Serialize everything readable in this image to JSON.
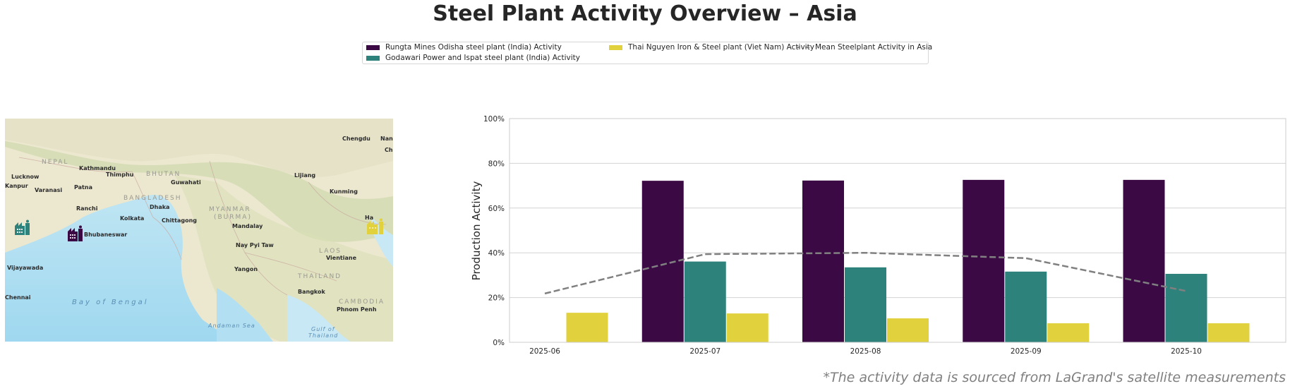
{
  "title": "Steel Plant Activity Overview – Asia",
  "footer": "*The activity data is sourced from LaGrand's satellite measurements",
  "legend": {
    "items": [
      {
        "label": "Rungta Mines Odisha steel plant (India) Activity",
        "color": "#3b0a45",
        "kind": "bar"
      },
      {
        "label": "Godawari Power and Ispat steel plant (India) Activity",
        "color": "#2e827c",
        "kind": "bar"
      },
      {
        "label": "Thai Nguyen Iron & Steel plant (Viet Nam) Activity",
        "color": "#e1d13c",
        "kind": "bar"
      },
      {
        "label": "Mean Steelplant Activity in Asia",
        "color": "#808080",
        "kind": "dashed-line"
      }
    ]
  },
  "map": {
    "labels": {
      "cities": [
        "Chengdu",
        "Nan",
        "Ch",
        "Kathmandu",
        "Thimphu",
        "Lucknow",
        "Kanpur",
        "Varanasi",
        "Patna",
        "Guwahati",
        "Lijiang",
        "Kunming",
        "Ranchi",
        "Dhaka",
        "Kolkata",
        "Chittagong",
        "Mandalay",
        "Bhubaneswar",
        "Nay Pyi Taw",
        "Vientiane",
        "Vijayawada",
        "Yangon",
        "Bangkok",
        "Chennai",
        "Phnom Penh",
        "Ha"
      ],
      "countries": [
        "NEPAL",
        "BHUTAN",
        "BANGLADESH",
        "MYANMAR",
        "(BURMA)",
        "LAOS",
        "THAILAND",
        "CAMBODIA"
      ],
      "seas": [
        "Bay of Bengal",
        "Andaman Sea",
        "Gulf of",
        "Thailand"
      ]
    },
    "markers": [
      {
        "plant": "Godawari Power and Ispat steel plant (India)",
        "color": "#2e827c",
        "icon": "factory-icon"
      },
      {
        "plant": "Rungta Mines Odisha steel plant (India)",
        "color": "#3b0a45",
        "icon": "factory-icon"
      },
      {
        "plant": "Thai Nguyen Iron & Steel plant (Viet Nam)",
        "color": "#e1d13c",
        "icon": "factory-icon"
      }
    ]
  },
  "chart_data": {
    "type": "bar",
    "title": "",
    "xlabel": "",
    "ylabel": "Production Activity",
    "ylim": [
      0,
      100
    ],
    "yticks": [
      "0%",
      "20%",
      "40%",
      "60%",
      "80%",
      "100%"
    ],
    "ytick_values": [
      0,
      20,
      40,
      60,
      80,
      100
    ],
    "grid": true,
    "legend_position": "top-center",
    "categories": [
      "2025-06",
      "2025-07",
      "2025-08",
      "2025-09",
      "2025-10"
    ],
    "series": [
      {
        "name": "Rungta Mines Odisha steel plant (India) Activity",
        "color": "#3b0a45",
        "values": [
          null,
          72.2,
          72.3,
          72.6,
          72.6
        ]
      },
      {
        "name": "Godawari Power and Ispat steel plant (India) Activity",
        "color": "#2e827c",
        "values": [
          null,
          36.1,
          33.5,
          31.6,
          30.6
        ]
      },
      {
        "name": "Thai Nguyen Iron & Steel plant (Viet Nam) Activity",
        "color": "#e1d13c",
        "values": [
          13.2,
          12.9,
          10.7,
          8.5,
          8.5
        ]
      }
    ],
    "line_series": {
      "name": "Mean Steelplant Activity in Asia",
      "color": "#808080",
      "style": "dashed",
      "values": [
        21.8,
        39.4,
        40.0,
        37.6,
        22.9
      ]
    }
  }
}
